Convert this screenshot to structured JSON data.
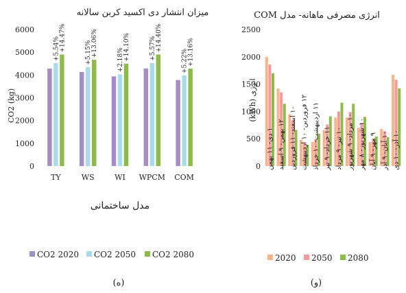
{
  "chart_data": [
    {
      "type": "bar",
      "title": "میزان انتشار دی اکسید کربن سالانه",
      "ylabel": "CO2 (kg)",
      "xlabel": "مدل ساختمانی",
      "ylim": [
        0,
        6000
      ],
      "yticks": [
        0,
        1000,
        2000,
        3000,
        4000,
        5000,
        6000
      ],
      "grid": false,
      "legend_position": "bottom",
      "categories": [
        "TY",
        "WS",
        "WI",
        "WPCM",
        "COM"
      ],
      "series": [
        {
          "name": "CO2 2020",
          "values": [
            4280,
            4130,
            3940,
            4290,
            3780
          ]
        },
        {
          "name": "CO2 2050",
          "values": [
            4520,
            4350,
            4030,
            4530,
            3980
          ]
        },
        {
          "name": "CO2 2080",
          "values": [
            4900,
            4670,
            4500,
            4900,
            4280
          ]
        }
      ],
      "annotations": [
        {
          "category": "TY",
          "label_2050": "+5.54%",
          "label_2080": "+14.47%"
        },
        {
          "category": "WS",
          "label_2050": "+5.15%",
          "label_2080": "+13.06%"
        },
        {
          "category": "WI",
          "label_2050": "+2.18%",
          "label_2080": "+14.10%"
        },
        {
          "category": "WPCM",
          "label_2050": "+5.57%",
          "label_2080": "+14.40%"
        },
        {
          "category": "COM",
          "label_2050": "+5.22%",
          "label_2080": "+13.16%"
        }
      ],
      "colors": {
        "CO2 2020": "#a28fc8",
        "CO2 2050": "#a9dcea",
        "CO2 2080": "#8dbb4b"
      },
      "panel_label": "(ه)"
    },
    {
      "type": "bar",
      "title": "انرژی مصرفی ماهانه- مدل COM",
      "ylabel": "انرژی (kWh)",
      "xlabel": "",
      "ylim": [
        0,
        2500
      ],
      "yticks": [
        0,
        500,
        1000,
        1500,
        2000,
        2500
      ],
      "grid": false,
      "legend_position": "bottom",
      "categories": [
        "۱ دی- ۱۱ بهمن",
        "۱۲ بهمن- ۹ اسفند",
        "۱۰ اسفند- ۱۱ فروردین",
        "۱۲ فروردین- ۱۰ اردیبهشت",
        "۱۱ اردیبهشت- ۱۰ خرداد",
        "۱۱ خرداد- ۹ تیر",
        "۱۰ تیر- ۹ مرداد",
        "۱۰ مرداد- ۹ شهریور",
        "۱۰ شهریور- ۸ مهر",
        "۹ مهر- ۹ آبان",
        "۱۰ آبان- ۹ آذر",
        "۱۰ آذر- ۱۰ دی"
      ],
      "series": [
        {
          "name": "2020",
          "values": [
            2000,
            1420,
            950,
            480,
            440,
            660,
            890,
            890,
            700,
            440,
            680,
            1670
          ]
        },
        {
          "name": "2050",
          "values": [
            1860,
            1350,
            840,
            420,
            490,
            760,
            1000,
            990,
            790,
            500,
            640,
            1580
          ]
        },
        {
          "name": "2080",
          "values": [
            1700,
            1140,
            660,
            390,
            590,
            910,
            1160,
            1140,
            900,
            540,
            530,
            1420
          ]
        }
      ],
      "colors": {
        "2020": "#f8b48a",
        "2050": "#f59a9a",
        "2080": "#8dbb4b"
      },
      "panel_label": "(و)"
    }
  ]
}
